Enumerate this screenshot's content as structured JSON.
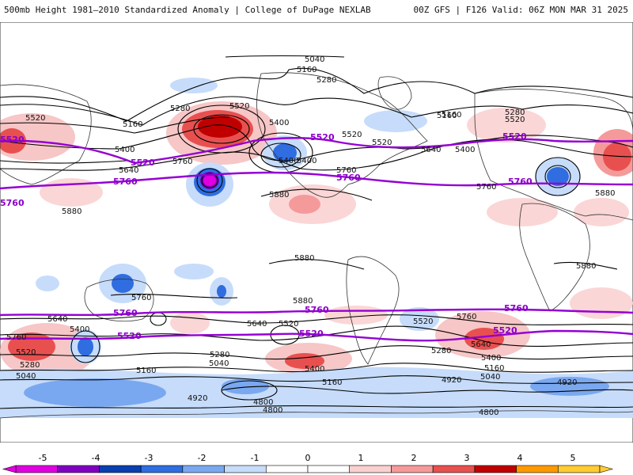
{
  "header": {
    "title_left": "500mb Height 1981–2010 Standardized Anomaly | College of DuPage NEXLAB",
    "title_right": "00Z GFS | F126 Valid: 06Z MON MAR 31 2025"
  },
  "colors": {
    "contour": "#000000",
    "highlight_contour": "#9400d3",
    "coast": "#333333"
  },
  "contour_labels": [
    "5040",
    "5160",
    "5280",
    "5520",
    "5160",
    "5400",
    "5640",
    "5760",
    "5280",
    "5520",
    "5400",
    "5520",
    "5760",
    "5880",
    "5400",
    "5640",
    "5520",
    "5280",
    "5520",
    "5160",
    "5400",
    "5760",
    "5880",
    "5880",
    "5880",
    "5880",
    "5760",
    "5640",
    "5400",
    "5760",
    "5520",
    "5280",
    "5040",
    "5160",
    "5640",
    "5880",
    "5520",
    "5400",
    "5760",
    "5520",
    "5640",
    "5280",
    "5400",
    "5160",
    "5040",
    "4920",
    "4920",
    "4800",
    "4800",
    "4800",
    "5040",
    "5160",
    "4920",
    "5400",
    "5280",
    "5160"
  ],
  "highlight_labels": [
    "5520",
    "5760",
    "5520",
    "5760",
    "5520",
    "5760",
    "5760",
    "5760",
    "5520",
    "5760",
    "5520",
    "5520",
    "5760",
    "5520"
  ],
  "colorbar": {
    "labels": [
      "-5",
      "-4",
      "-3",
      "-2",
      "-1",
      "0",
      "1",
      "2",
      "3",
      "4",
      "5"
    ],
    "colors": [
      "#e000e0",
      "#8000c0",
      "#0a3fb0",
      "#2f6de0",
      "#7aa8f0",
      "#c6dcfa",
      "#ffffff",
      "#ffffff",
      "#fbd0d0",
      "#f59a9a",
      "#e85050",
      "#c00000",
      "#ff9900",
      "#ffcc33"
    ]
  }
}
